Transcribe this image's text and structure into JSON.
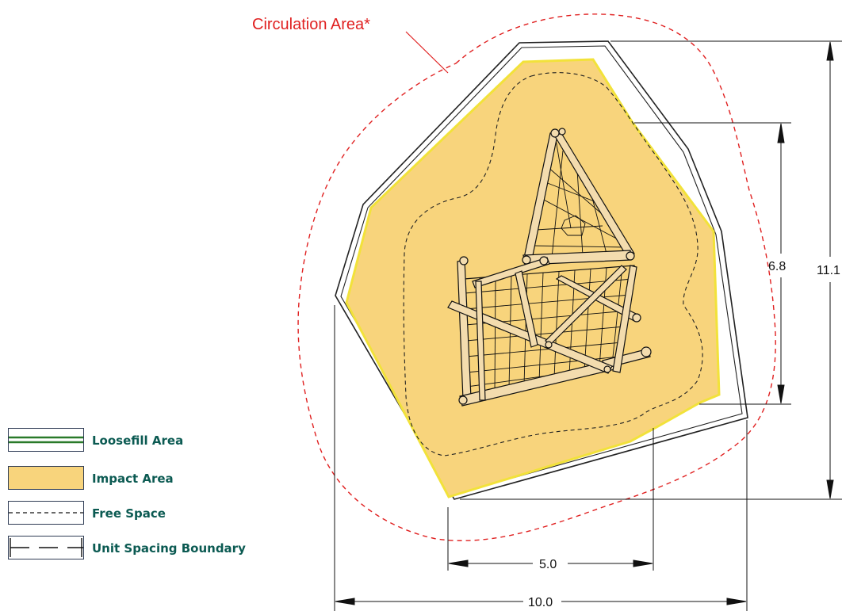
{
  "diagram": {
    "circulation_label": "Circulation Area*",
    "dimensions": {
      "width_total": "10.0",
      "width_partial": "5.0",
      "height_total": "11.1",
      "height_partial": "6.8"
    }
  },
  "legend": {
    "items": [
      {
        "label": "Loosefill Area"
      },
      {
        "label": "Impact Area"
      },
      {
        "label": "Free Space"
      },
      {
        "label": "Unit Spacing Boundary"
      }
    ]
  },
  "colors": {
    "impact_fill": "#f8d47c",
    "impact_edge": "#f2e23a",
    "circulation": "#e02020",
    "loosefill": "#2a7a2a",
    "legend_text": "#0b5a52",
    "timber": "#f3dcae",
    "line": "#111111"
  }
}
